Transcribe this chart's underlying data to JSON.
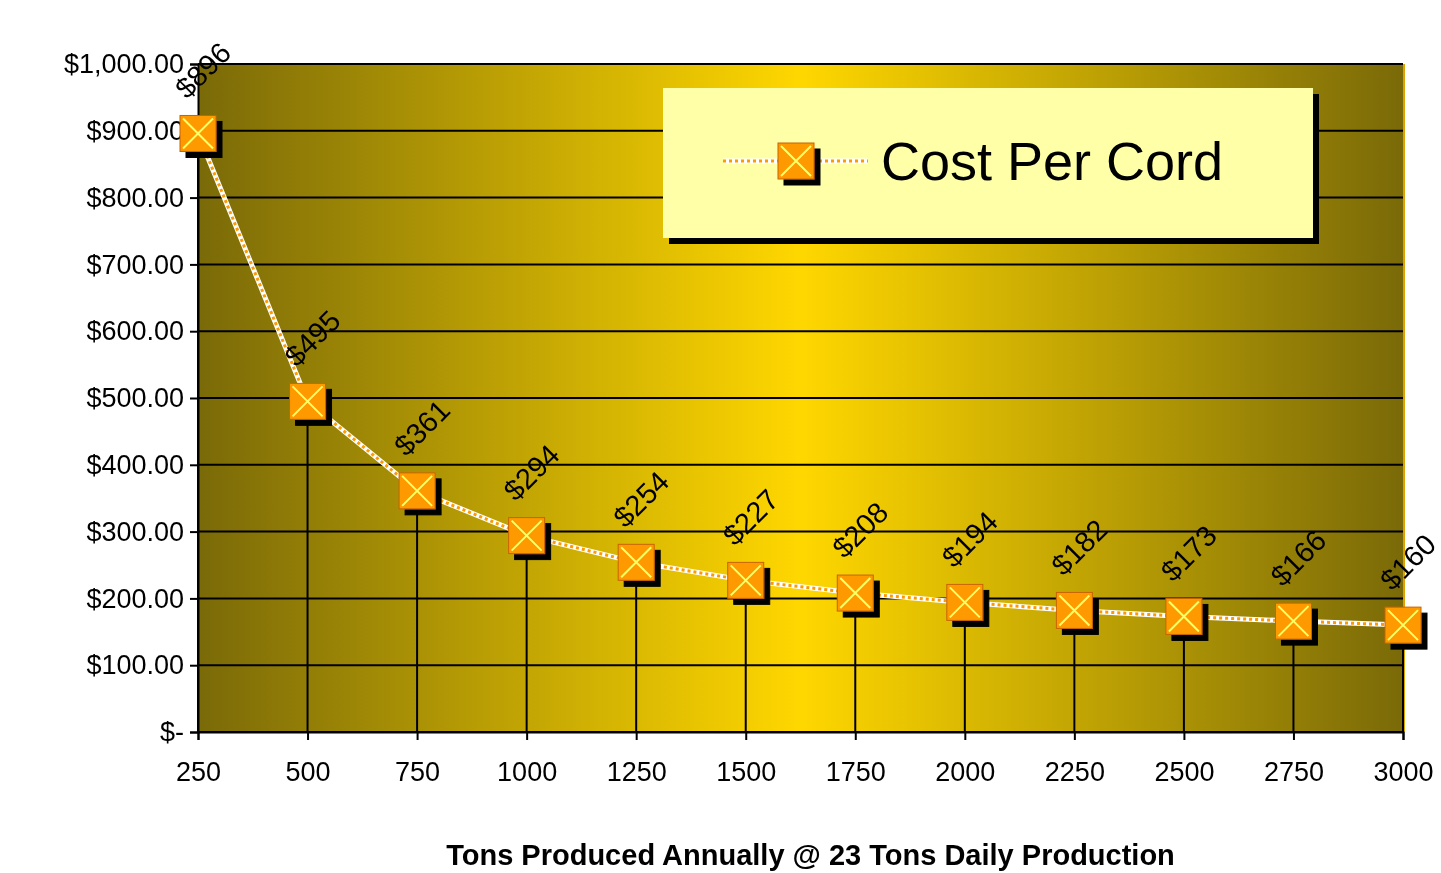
{
  "chart_data": {
    "type": "line",
    "xlabel": "Tons Produced Annually @ 23 Tons Daily Production",
    "categories": [
      "250",
      "500",
      "750",
      "1000",
      "1250",
      "1500",
      "1750",
      "2000",
      "2250",
      "2500",
      "2750",
      "3000"
    ],
    "series": [
      {
        "name": "Cost Per Cord",
        "color": "#ff9900",
        "values": [
          896,
          495,
          361,
          294,
          254,
          227,
          208,
          194,
          182,
          173,
          166,
          160
        ],
        "value_labels": [
          "$896",
          "$495",
          "$361",
          "$294",
          "$254",
          "$227",
          "$208",
          "$194",
          "$182",
          "$173",
          "$166",
          "$160"
        ]
      }
    ],
    "ylim": [
      0,
      1000
    ],
    "yticks": [
      {
        "value": 0,
        "label": "$-"
      },
      {
        "value": 100,
        "label": "$100.00"
      },
      {
        "value": 200,
        "label": "$200.00"
      },
      {
        "value": 300,
        "label": "$300.00"
      },
      {
        "value": 400,
        "label": "$400.00"
      },
      {
        "value": 500,
        "label": "$500.00"
      },
      {
        "value": 600,
        "label": "$600.00"
      },
      {
        "value": 700,
        "label": "$700.00"
      },
      {
        "value": 800,
        "label": "$800.00"
      },
      {
        "value": 900,
        "label": "$900.00"
      },
      {
        "value": 1000,
        "label": "$1,000.00"
      }
    ],
    "grid": "y",
    "legend": "top right",
    "marker": "square",
    "line_style": "dotted"
  }
}
